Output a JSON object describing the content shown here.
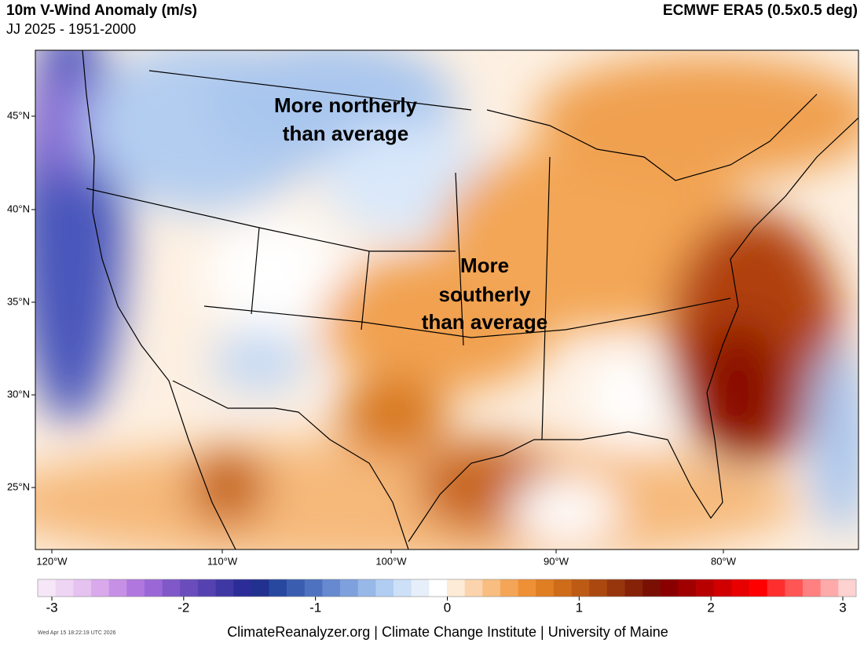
{
  "header": {
    "title": "10m V-Wind Anomaly (m/s)",
    "subtitle": "JJ 2025 - 1951-2000",
    "source": "ECMWF ERA5 (0.5x0.5 deg)"
  },
  "map": {
    "lat_labels": [
      "45°N",
      "40°N",
      "35°N",
      "30°N",
      "25°N"
    ],
    "lon_labels": [
      "120°W",
      "110°W",
      "100°W",
      "90°W",
      "80°W"
    ],
    "annotations": [
      {
        "lines": [
          "More northerly",
          "than average"
        ]
      },
      {
        "lines": [
          "More",
          "southerly",
          "than average"
        ]
      }
    ]
  },
  "colorbar": {
    "lim": [
      -3,
      3
    ],
    "ticks": [
      -3,
      -2,
      -1,
      0,
      1,
      2,
      3
    ],
    "colors": [
      "#f6e6f8",
      "#efd5f4",
      "#e6c2f0",
      "#d9a9ec",
      "#c690e6",
      "#b078de",
      "#9a68d6",
      "#8058c8",
      "#6a4cbc",
      "#5542b0",
      "#3f37a4",
      "#2c2c98",
      "#22308f",
      "#2848a0",
      "#3a5db0",
      "#4e72c0",
      "#6689cf",
      "#7ea0dc",
      "#98b8e8",
      "#b2cdf2",
      "#cde0f8",
      "#e6eff9",
      "#ffffff",
      "#fdebd8",
      "#fbd4ad",
      "#f8bd80",
      "#f4a557",
      "#ee9036",
      "#e07e24",
      "#cf6c1a",
      "#bd5a14",
      "#aa4810",
      "#97350c",
      "#852208",
      "#7a1004",
      "#8a0000",
      "#a00000",
      "#b80000",
      "#d00000",
      "#e80000",
      "#ff0000",
      "#ff2e2e",
      "#ff5555",
      "#ff8080",
      "#ffaaaa",
      "#ffd2d2"
    ]
  },
  "footer": {
    "timestamp": "Wed Apr 15 18:22:19 UTC 2026",
    "credit": "ClimateReanalyzer.org | Climate Change Institute | University of Maine"
  }
}
